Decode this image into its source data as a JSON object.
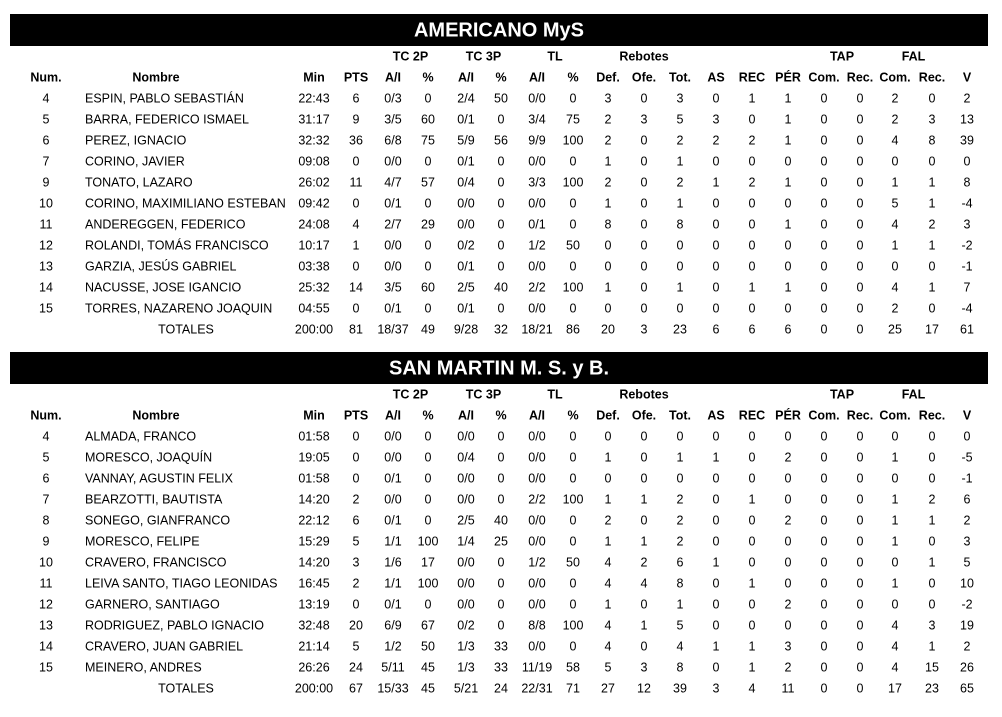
{
  "teams": [
    {
      "name": "AMERICANO MyS",
      "group_headers": [
        "TC 2P",
        "TC 3P",
        "TL",
        "Rebotes",
        "TAP",
        "FAL"
      ],
      "headers": [
        "Num.",
        "Nombre",
        "Min",
        "PTS",
        "A/I",
        "%",
        "A/I",
        "%",
        "A/I",
        "%",
        "Def.",
        "Ofe.",
        "Tot.",
        "AS",
        "REC",
        "PÉR",
        "Com.",
        "Rec.",
        "Com.",
        "Rec.",
        "V"
      ],
      "rows": [
        [
          "4",
          "ESPIN, PABLO SEBASTIÁN",
          "22:43",
          "6",
          "0/3",
          "0",
          "2/4",
          "50",
          "0/0",
          "0",
          "3",
          "0",
          "3",
          "0",
          "1",
          "1",
          "0",
          "0",
          "2",
          "0",
          "2"
        ],
        [
          "5",
          "BARRA, FEDERICO ISMAEL",
          "31:17",
          "9",
          "3/5",
          "60",
          "0/1",
          "0",
          "3/4",
          "75",
          "2",
          "3",
          "5",
          "3",
          "0",
          "1",
          "0",
          "0",
          "2",
          "3",
          "13"
        ],
        [
          "6",
          "PEREZ, IGNACIO",
          "32:32",
          "36",
          "6/8",
          "75",
          "5/9",
          "56",
          "9/9",
          "100",
          "2",
          "0",
          "2",
          "2",
          "2",
          "1",
          "0",
          "0",
          "4",
          "8",
          "39"
        ],
        [
          "7",
          "CORINO, JAVIER",
          "09:08",
          "0",
          "0/0",
          "0",
          "0/1",
          "0",
          "0/0",
          "0",
          "1",
          "0",
          "1",
          "0",
          "0",
          "0",
          "0",
          "0",
          "0",
          "0",
          "0"
        ],
        [
          "9",
          "TONATO, LAZARO",
          "26:02",
          "11",
          "4/7",
          "57",
          "0/4",
          "0",
          "3/3",
          "100",
          "2",
          "0",
          "2",
          "1",
          "2",
          "1",
          "0",
          "0",
          "1",
          "1",
          "8"
        ],
        [
          "10",
          "CORINO, MAXIMILIANO ESTEBAN",
          "09:42",
          "0",
          "0/1",
          "0",
          "0/0",
          "0",
          "0/0",
          "0",
          "1",
          "0",
          "1",
          "0",
          "0",
          "0",
          "0",
          "0",
          "5",
          "1",
          "-4"
        ],
        [
          "11",
          "ANDEREGGEN, FEDERICO",
          "24:08",
          "4",
          "2/7",
          "29",
          "0/0",
          "0",
          "0/1",
          "0",
          "8",
          "0",
          "8",
          "0",
          "0",
          "1",
          "0",
          "0",
          "4",
          "2",
          "3"
        ],
        [
          "12",
          "ROLANDI, TOMÁS FRANCISCO",
          "10:17",
          "1",
          "0/0",
          "0",
          "0/2",
          "0",
          "1/2",
          "50",
          "0",
          "0",
          "0",
          "0",
          "0",
          "0",
          "0",
          "0",
          "1",
          "1",
          "-2"
        ],
        [
          "13",
          "GARZIA, JESÚS GABRIEL",
          "03:38",
          "0",
          "0/0",
          "0",
          "0/1",
          "0",
          "0/0",
          "0",
          "0",
          "0",
          "0",
          "0",
          "0",
          "0",
          "0",
          "0",
          "0",
          "0",
          "-1"
        ],
        [
          "14",
          "NACUSSE, JOSE IGANCIO",
          "25:32",
          "14",
          "3/5",
          "60",
          "2/5",
          "40",
          "2/2",
          "100",
          "1",
          "0",
          "1",
          "0",
          "1",
          "1",
          "0",
          "0",
          "4",
          "1",
          "7"
        ],
        [
          "15",
          "TORRES, NAZARENO JOAQUIN",
          "04:55",
          "0",
          "0/1",
          "0",
          "0/1",
          "0",
          "0/0",
          "0",
          "0",
          "0",
          "0",
          "0",
          "0",
          "0",
          "0",
          "0",
          "2",
          "0",
          "-4"
        ]
      ],
      "totals": [
        "TOTALES",
        "200:00",
        "81",
        "18/37",
        "49",
        "9/28",
        "32",
        "18/21",
        "86",
        "20",
        "3",
        "23",
        "6",
        "6",
        "6",
        "0",
        "0",
        "25",
        "17",
        "61"
      ]
    },
    {
      "name": "SAN MARTIN M. S. y B.",
      "group_headers": [
        "TC 2P",
        "TC 3P",
        "TL",
        "Rebotes",
        "TAP",
        "FAL"
      ],
      "headers": [
        "Num.",
        "Nombre",
        "Min",
        "PTS",
        "A/I",
        "%",
        "A/I",
        "%",
        "A/I",
        "%",
        "Def.",
        "Ofe.",
        "Tot.",
        "AS",
        "REC",
        "PÉR",
        "Com.",
        "Rec.",
        "Com.",
        "Rec.",
        "V"
      ],
      "rows": [
        [
          "4",
          "ALMADA, FRANCO",
          "01:58",
          "0",
          "0/0",
          "0",
          "0/0",
          "0",
          "0/0",
          "0",
          "0",
          "0",
          "0",
          "0",
          "0",
          "0",
          "0",
          "0",
          "0",
          "0",
          "0"
        ],
        [
          "5",
          "MORESCO, JOAQUÍN",
          "19:05",
          "0",
          "0/0",
          "0",
          "0/4",
          "0",
          "0/0",
          "0",
          "1",
          "0",
          "1",
          "1",
          "0",
          "2",
          "0",
          "0",
          "1",
          "0",
          "-5"
        ],
        [
          "6",
          "VANNAY, AGUSTIN FELIX",
          "01:58",
          "0",
          "0/1",
          "0",
          "0/0",
          "0",
          "0/0",
          "0",
          "0",
          "0",
          "0",
          "0",
          "0",
          "0",
          "0",
          "0",
          "0",
          "0",
          "-1"
        ],
        [
          "7",
          "BEARZOTTI, BAUTISTA",
          "14:20",
          "2",
          "0/0",
          "0",
          "0/0",
          "0",
          "2/2",
          "100",
          "1",
          "1",
          "2",
          "0",
          "1",
          "0",
          "0",
          "0",
          "1",
          "2",
          "6"
        ],
        [
          "8",
          "SONEGO, GIANFRANCO",
          "22:12",
          "6",
          "0/1",
          "0",
          "2/5",
          "40",
          "0/0",
          "0",
          "2",
          "0",
          "2",
          "0",
          "0",
          "2",
          "0",
          "0",
          "1",
          "1",
          "2"
        ],
        [
          "9",
          "MORESCO, FELIPE",
          "15:29",
          "5",
          "1/1",
          "100",
          "1/4",
          "25",
          "0/0",
          "0",
          "1",
          "1",
          "2",
          "0",
          "0",
          "0",
          "0",
          "0",
          "1",
          "0",
          "3"
        ],
        [
          "10",
          "CRAVERO, FRANCISCO",
          "14:20",
          "3",
          "1/6",
          "17",
          "0/0",
          "0",
          "1/2",
          "50",
          "4",
          "2",
          "6",
          "1",
          "0",
          "0",
          "0",
          "0",
          "0",
          "1",
          "5"
        ],
        [
          "11",
          "LEIVA SANTO, TIAGO LEONIDAS",
          "16:45",
          "2",
          "1/1",
          "100",
          "0/0",
          "0",
          "0/0",
          "0",
          "4",
          "4",
          "8",
          "0",
          "1",
          "0",
          "0",
          "0",
          "1",
          "0",
          "10"
        ],
        [
          "12",
          "GARNERO, SANTIAGO",
          "13:19",
          "0",
          "0/1",
          "0",
          "0/0",
          "0",
          "0/0",
          "0",
          "1",
          "0",
          "1",
          "0",
          "0",
          "2",
          "0",
          "0",
          "0",
          "0",
          "-2"
        ],
        [
          "13",
          "RODRIGUEZ, PABLO IGNACIO",
          "32:48",
          "20",
          "6/9",
          "67",
          "0/2",
          "0",
          "8/8",
          "100",
          "4",
          "1",
          "5",
          "0",
          "0",
          "0",
          "0",
          "0",
          "4",
          "3",
          "19"
        ],
        [
          "14",
          "CRAVERO, JUAN GABRIEL",
          "21:14",
          "5",
          "1/2",
          "50",
          "1/3",
          "33",
          "0/0",
          "0",
          "4",
          "0",
          "4",
          "1",
          "1",
          "3",
          "0",
          "0",
          "4",
          "1",
          "2"
        ],
        [
          "15",
          "MEINERO, ANDRES",
          "26:26",
          "24",
          "5/11",
          "45",
          "1/3",
          "33",
          "11/19",
          "58",
          "5",
          "3",
          "8",
          "0",
          "1",
          "2",
          "0",
          "0",
          "4",
          "15",
          "26"
        ]
      ],
      "totals": [
        "TOTALES",
        "200:00",
        "67",
        "15/33",
        "45",
        "5/21",
        "24",
        "22/31",
        "71",
        "27",
        "12",
        "39",
        "3",
        "4",
        "11",
        "0",
        "0",
        "17",
        "23",
        "65"
      ]
    }
  ]
}
